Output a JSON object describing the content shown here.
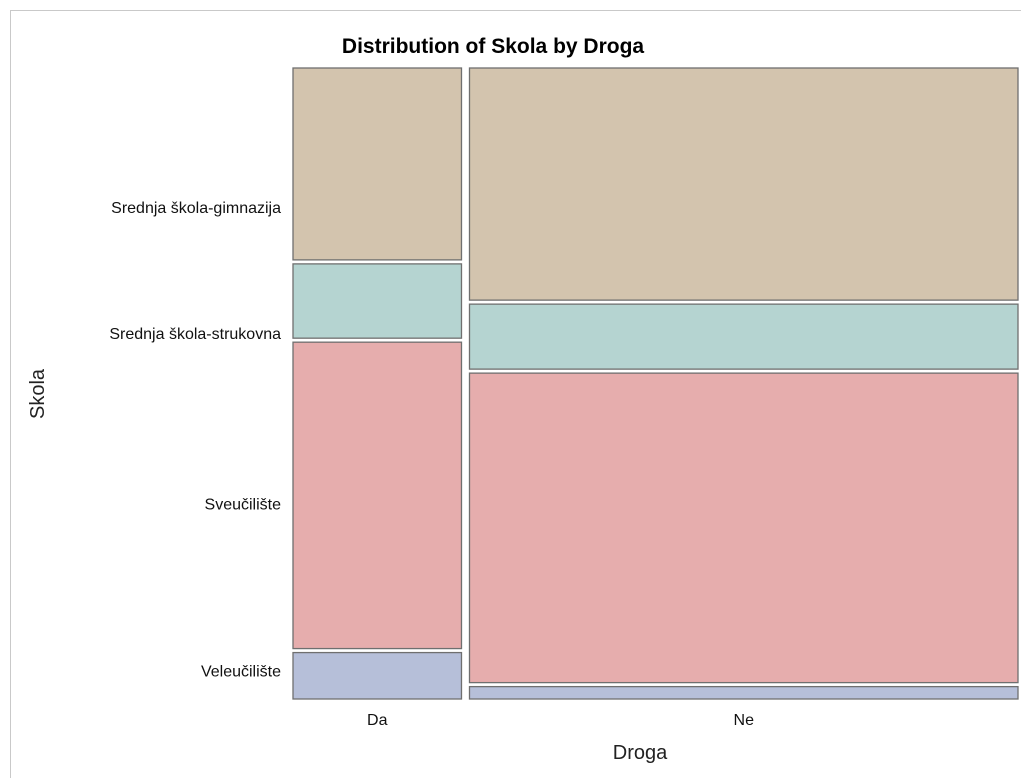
{
  "chart_data": {
    "type": "mosaic",
    "title": "Distribution of Skola by Droga",
    "xlabel": "Droga",
    "ylabel": "Skola",
    "x_categories": [
      "Da",
      "Ne"
    ],
    "x_widths": [
      0.235,
      0.765
    ],
    "y_categories": [
      "Srednja škola-gimnazija",
      "Srednja škola-strukovna",
      "Sveučilište",
      "Veleučilište"
    ],
    "y_tick_levels": [
      0.22,
      0.42,
      0.69,
      0.955
    ],
    "colors": {
      "Srednja škola-gimnazija": "#d3c4ae",
      "Srednja škola-strukovna": "#b5d4d1",
      "Sveučilište": "#e6adad",
      "Veleučilište": "#b6bfd9"
    },
    "columns": [
      {
        "category": "Da",
        "proportions": [
          0.31,
          0.12,
          0.495,
          0.075
        ]
      },
      {
        "category": "Ne",
        "proportions": [
          0.375,
          0.105,
          0.5,
          0.02
        ]
      }
    ]
  }
}
